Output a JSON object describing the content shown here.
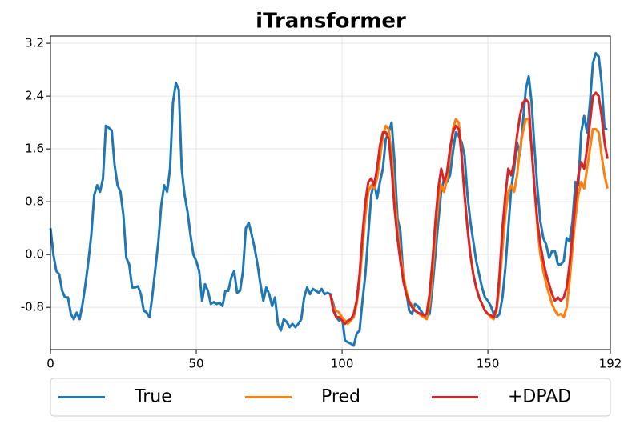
{
  "chart_data": {
    "type": "line",
    "title": "iTransformer",
    "x": [
      0,
      1,
      2,
      3,
      4,
      5,
      6,
      7,
      8,
      9,
      10,
      11,
      12,
      13,
      14,
      15,
      16,
      17,
      18,
      19,
      20,
      21,
      22,
      23,
      24,
      25,
      26,
      27,
      28,
      29,
      30,
      31,
      32,
      33,
      34,
      35,
      36,
      37,
      38,
      39,
      40,
      41,
      42,
      43,
      44,
      45,
      46,
      47,
      48,
      49,
      50,
      51,
      52,
      53,
      54,
      55,
      56,
      57,
      58,
      59,
      60,
      61,
      62,
      63,
      64,
      65,
      66,
      67,
      68,
      69,
      70,
      71,
      72,
      73,
      74,
      75,
      76,
      77,
      78,
      79,
      80,
      81,
      82,
      83,
      84,
      85,
      86,
      87,
      88,
      89,
      90,
      91,
      92,
      93,
      94,
      95,
      96,
      97,
      98,
      99,
      100,
      101,
      102,
      103,
      104,
      105,
      106,
      107,
      108,
      109,
      110,
      111,
      112,
      113,
      114,
      115,
      116,
      117,
      118,
      119,
      120,
      121,
      122,
      123,
      124,
      125,
      126,
      127,
      128,
      129,
      130,
      131,
      132,
      133,
      134,
      135,
      136,
      137,
      138,
      139,
      140,
      141,
      142,
      143,
      144,
      145,
      146,
      147,
      148,
      149,
      150,
      151,
      152,
      153,
      154,
      155,
      156,
      157,
      158,
      159,
      160,
      161,
      162,
      163,
      164,
      165,
      166,
      167,
      168,
      169,
      170,
      171,
      172,
      173,
      174,
      175,
      176,
      177,
      178,
      179,
      180,
      181,
      182,
      183,
      184,
      185,
      186,
      187,
      188,
      189,
      190,
      191
    ],
    "series": [
      {
        "name": "True",
        "color": "#1f77b4",
        "values": [
          0.4,
          0.0,
          -0.25,
          -0.3,
          -0.55,
          -0.65,
          -0.65,
          -0.9,
          -0.98,
          -0.88,
          -0.98,
          -0.75,
          -0.45,
          -0.1,
          0.3,
          0.9,
          1.05,
          0.95,
          1.15,
          1.95,
          1.92,
          1.88,
          1.35,
          1.05,
          0.95,
          0.6,
          -0.05,
          -0.15,
          -0.5,
          -0.5,
          -0.48,
          -0.6,
          -0.85,
          -0.88,
          -0.95,
          -0.6,
          -0.2,
          0.2,
          0.75,
          1.05,
          0.95,
          1.3,
          2.3,
          2.6,
          2.5,
          1.3,
          0.9,
          0.65,
          0.3,
          0.0,
          -0.1,
          -0.25,
          -0.7,
          -0.45,
          -0.55,
          -0.75,
          -0.72,
          -0.75,
          -0.73,
          -0.78,
          -0.55,
          -0.55,
          -0.35,
          -0.25,
          -0.58,
          -0.55,
          -0.25,
          0.4,
          0.48,
          0.3,
          0.1,
          -0.15,
          -0.45,
          -0.7,
          -0.5,
          -0.6,
          -0.78,
          -0.65,
          -1.05,
          -1.15,
          -0.98,
          -1.02,
          -1.1,
          -1.05,
          -1.1,
          -1.05,
          -0.98,
          -0.65,
          -0.5,
          -0.6,
          -0.52,
          -0.55,
          -0.58,
          -0.52,
          -0.6,
          -0.58,
          -0.6,
          -0.75,
          -0.95,
          -1.0,
          -0.95,
          -1.3,
          -1.33,
          -1.35,
          -1.38,
          -1.2,
          -1.15,
          -0.7,
          -0.3,
          0.3,
          0.9,
          1.1,
          0.85,
          1.1,
          1.3,
          1.75,
          1.85,
          2.0,
          1.4,
          0.55,
          0.35,
          -0.35,
          -0.55,
          -0.85,
          -0.9,
          -0.75,
          -0.78,
          -0.85,
          -0.92,
          -0.95,
          -0.9,
          -0.5,
          0.0,
          0.5,
          0.95,
          1.15,
          1.1,
          1.2,
          1.55,
          1.85,
          1.8,
          1.7,
          1.5,
          0.9,
          0.5,
          0.2,
          -0.1,
          -0.3,
          -0.5,
          -0.65,
          -0.7,
          -0.78,
          -0.9,
          -0.95,
          -0.9,
          -0.65,
          -0.2,
          0.4,
          1.0,
          1.3,
          1.7,
          1.5,
          2.0,
          2.5,
          2.7,
          2.3,
          1.6,
          1.0,
          0.5,
          0.25,
          0.15,
          -0.05,
          0.05,
          0.05,
          -0.15,
          -0.15,
          -0.1,
          0.25,
          0.2,
          0.5,
          1.1,
          1.05,
          1.85,
          2.1,
          1.85,
          2.3,
          2.9,
          3.05,
          3.0,
          2.6,
          1.9,
          1.9
        ]
      },
      {
        "name": "Pred",
        "color": "#ff7f0e",
        "values": [
          null,
          null,
          null,
          null,
          null,
          null,
          null,
          null,
          null,
          null,
          null,
          null,
          null,
          null,
          null,
          null,
          null,
          null,
          null,
          null,
          null,
          null,
          null,
          null,
          null,
          null,
          null,
          null,
          null,
          null,
          null,
          null,
          null,
          null,
          null,
          null,
          null,
          null,
          null,
          null,
          null,
          null,
          null,
          null,
          null,
          null,
          null,
          null,
          null,
          null,
          null,
          null,
          null,
          null,
          null,
          null,
          null,
          null,
          null,
          null,
          null,
          null,
          null,
          null,
          null,
          null,
          null,
          null,
          null,
          null,
          null,
          null,
          null,
          null,
          null,
          null,
          null,
          null,
          null,
          null,
          null,
          null,
          null,
          null,
          null,
          null,
          null,
          null,
          null,
          null,
          null,
          null,
          null,
          null,
          null,
          null,
          -0.6,
          -0.8,
          -0.85,
          -0.88,
          -0.95,
          -1.0,
          -1.05,
          -1.0,
          -0.95,
          -0.75,
          -0.4,
          0.1,
          0.6,
          0.95,
          1.05,
          1.0,
          1.15,
          1.45,
          1.8,
          1.95,
          1.9,
          1.5,
          0.9,
          0.4,
          0.0,
          -0.3,
          -0.55,
          -0.7,
          -0.78,
          -0.85,
          -0.88,
          -0.92,
          -0.95,
          -0.98,
          -0.75,
          -0.3,
          0.3,
          0.8,
          1.05,
          0.95,
          1.15,
          1.5,
          1.9,
          2.05,
          2.0,
          1.5,
          0.9,
          0.4,
          0.0,
          -0.3,
          -0.5,
          -0.65,
          -0.75,
          -0.85,
          -0.9,
          -0.95,
          -0.98,
          -0.85,
          -0.45,
          0.1,
          0.6,
          0.95,
          1.05,
          0.95,
          1.2,
          1.6,
          1.85,
          2.05,
          2.05,
          1.6,
          1.0,
          0.4,
          0.0,
          -0.25,
          -0.45,
          -0.6,
          -0.75,
          -0.85,
          -0.92,
          -0.9,
          -0.95,
          -0.8,
          -0.4,
          0.1,
          0.55,
          0.9,
          1.1,
          1.0,
          1.3,
          1.6,
          1.9,
          1.9,
          1.85,
          1.5,
          1.2,
          1.0
        ]
      },
      {
        "name": "+DPAD",
        "color": "#d62728",
        "values": [
          null,
          null,
          null,
          null,
          null,
          null,
          null,
          null,
          null,
          null,
          null,
          null,
          null,
          null,
          null,
          null,
          null,
          null,
          null,
          null,
          null,
          null,
          null,
          null,
          null,
          null,
          null,
          null,
          null,
          null,
          null,
          null,
          null,
          null,
          null,
          null,
          null,
          null,
          null,
          null,
          null,
          null,
          null,
          null,
          null,
          null,
          null,
          null,
          null,
          null,
          null,
          null,
          null,
          null,
          null,
          null,
          null,
          null,
          null,
          null,
          null,
          null,
          null,
          null,
          null,
          null,
          null,
          null,
          null,
          null,
          null,
          null,
          null,
          null,
          null,
          null,
          null,
          null,
          null,
          null,
          null,
          null,
          null,
          null,
          null,
          null,
          null,
          null,
          null,
          null,
          null,
          null,
          null,
          null,
          null,
          null,
          -0.6,
          -0.85,
          -0.95,
          -0.95,
          -1.0,
          -1.05,
          -1.0,
          -0.98,
          -0.9,
          -0.7,
          -0.3,
          0.3,
          0.8,
          1.1,
          1.15,
          1.05,
          1.3,
          1.65,
          1.85,
          1.85,
          1.75,
          1.3,
          0.7,
          0.25,
          -0.1,
          -0.4,
          -0.6,
          -0.72,
          -0.8,
          -0.85,
          -0.88,
          -0.9,
          -0.92,
          -0.9,
          -0.6,
          -0.1,
          0.5,
          1.0,
          1.3,
          1.1,
          1.25,
          1.6,
          1.85,
          1.95,
          1.9,
          1.5,
          0.9,
          0.4,
          0.0,
          -0.3,
          -0.5,
          -0.65,
          -0.75,
          -0.85,
          -0.9,
          -0.92,
          -0.95,
          -0.8,
          -0.3,
          0.4,
          0.9,
          1.3,
          1.2,
          1.4,
          1.8,
          2.1,
          2.3,
          2.35,
          2.3,
          1.6,
          1.0,
          0.5,
          0.15,
          -0.1,
          -0.3,
          -0.45,
          -0.6,
          -0.7,
          -0.65,
          -0.7,
          -0.65,
          -0.5,
          -0.15,
          0.3,
          0.8,
          1.2,
          1.4,
          1.3,
          1.6,
          2.0,
          2.4,
          2.45,
          2.4,
          2.1,
          1.7,
          1.45
        ]
      }
    ],
    "xlim": [
      0,
      192
    ],
    "xticks": [
      0,
      50,
      100,
      150,
      192
    ],
    "ylim": [
      -1.44,
      3.31
    ],
    "yticks": [
      -0.8,
      {
        "value": 0,
        "label": "0.0"
      },
      0.8,
      1.6,
      2.4,
      3.2
    ],
    "grid": true,
    "legend": "below"
  }
}
